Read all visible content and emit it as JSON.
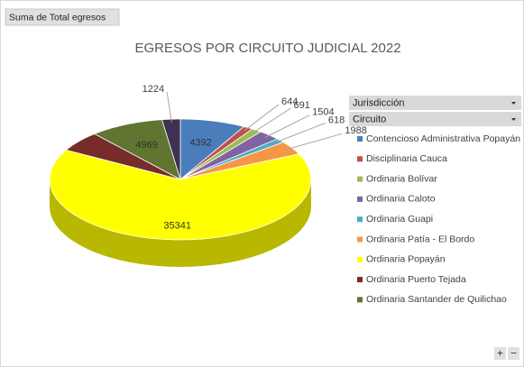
{
  "field_button": "Suma de Total egresos",
  "filters": [
    "Jurisdicción",
    "Circuito"
  ],
  "zoom_buttons": [
    "+",
    "−"
  ],
  "chart_data": {
    "type": "pie",
    "title": "EGRESOS POR CIRCUITO JUDICIAL 2022",
    "categories": [
      "Contencioso Administrativa Popayán",
      "Disciplinaria Cauca",
      "Ordinaria Bolívar",
      "Ordinaria Caloto",
      "Ordinaria Guapi",
      "Ordinaria Patía - El Bordo",
      "Ordinaria Popayán",
      "Ordinaria Puerto Tejada",
      "Ordinaria Santander de Quilichao",
      null
    ],
    "values": [
      4392,
      644,
      691,
      1504,
      618,
      1988,
      35341,
      3000,
      4969,
      1224
    ],
    "value_labels": [
      "4392",
      "644",
      "691",
      "1504",
      "618",
      "1988",
      "35341",
      null,
      "4969",
      "1224"
    ],
    "colors": [
      "#4a7ebb",
      "#c0504d",
      "#9bbb59",
      "#8064a2",
      "#4bacc6",
      "#f79646",
      "#ffff00",
      "#772c2a",
      "#5f7530",
      "#3f3151"
    ],
    "legend": "right"
  }
}
